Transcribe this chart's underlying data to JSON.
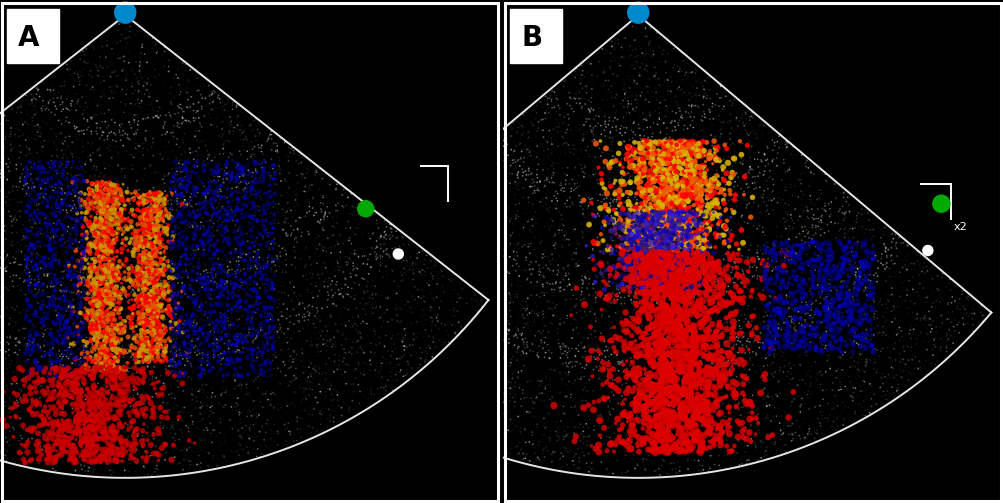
{
  "figure_width": 10.04,
  "figure_height": 5.03,
  "dpi": 100,
  "background_color": "#000000",
  "panel_A_label": "A",
  "panel_B_label": "B",
  "label_fontsize": 20,
  "p_dot_color": "#0088cc",
  "green_dot_color": "#00aa00"
}
